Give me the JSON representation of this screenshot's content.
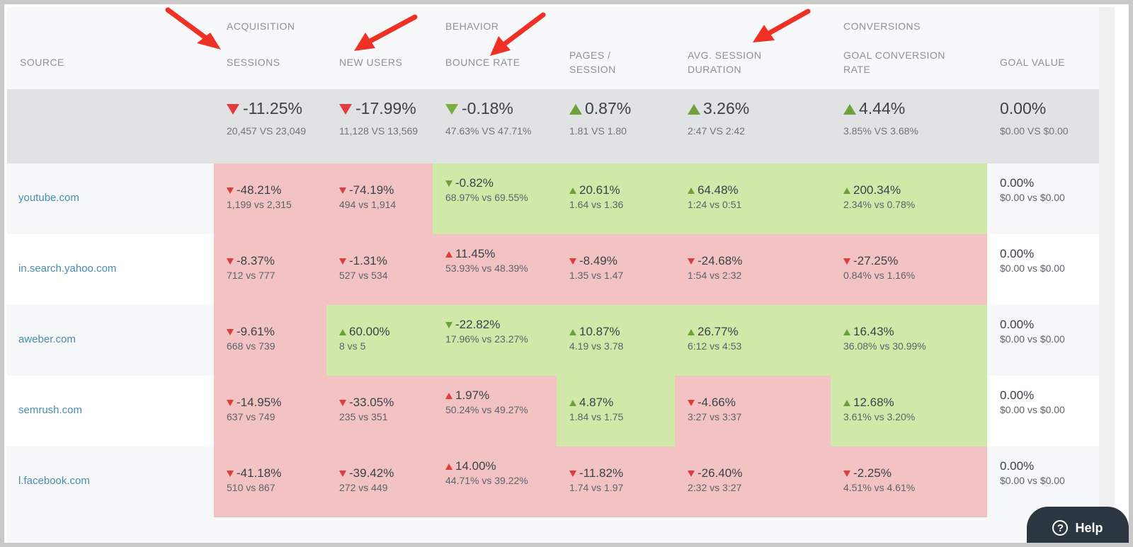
{
  "header": {
    "source": "SOURCE",
    "groups": {
      "acquisition": "ACQUISITION",
      "behavior": "BEHAVIOR",
      "conversions": "CONVERSIONS"
    },
    "columns": {
      "sessions": "SESSIONS",
      "new_users": "NEW USERS",
      "bounce_rate": "BOUNCE RATE",
      "pages_session": "PAGES /\nSESSION",
      "avg_duration": "AVG. SESSION\nDURATION",
      "goal_conv_rate": "GOAL CONVERSION\nRATE",
      "goal_value": "GOAL VALUE"
    }
  },
  "totals": {
    "sessions": {
      "pct": "-11.25%",
      "cmp": "20,457 VS 23,049",
      "trend": "down"
    },
    "new_users": {
      "pct": "-17.99%",
      "cmp": "11,128 VS 13,569",
      "trend": "down"
    },
    "bounce_rate": {
      "pct": "-0.18%",
      "cmp": "47.63% VS 47.71%",
      "trend": "down-good"
    },
    "pages_session": {
      "pct": "0.87%",
      "cmp": "1.81 VS 1.80",
      "trend": "up"
    },
    "avg_duration": {
      "pct": "3.26%",
      "cmp": "2:47 VS 2:42",
      "trend": "up"
    },
    "goal_conv_rate": {
      "pct": "4.44%",
      "cmp": "3.85% VS 3.68%",
      "trend": "up"
    },
    "goal_value": {
      "pct": "0.00%",
      "cmp": "$0.00 VS $0.00",
      "trend": "none"
    }
  },
  "rows": [
    {
      "source": "youtube.com",
      "cells": [
        {
          "pct": "-48.21%",
          "cmp": "1,199 vs 2,315",
          "trend": "down",
          "status": "bad"
        },
        {
          "pct": "-74.19%",
          "cmp": "494 vs 1,914",
          "trend": "down",
          "status": "bad"
        },
        {
          "pct": "-0.82%",
          "cmp": "68.97% vs 69.55%",
          "trend": "down-good",
          "status": "good"
        },
        {
          "pct": "20.61%",
          "cmp": "1.64 vs 1.36",
          "trend": "up",
          "status": "good"
        },
        {
          "pct": "64.48%",
          "cmp": "1:24 vs 0:51",
          "trend": "up",
          "status": "good"
        },
        {
          "pct": "200.34%",
          "cmp": "2.34% vs 0.78%",
          "trend": "up",
          "status": "good"
        },
        {
          "pct": "0.00%",
          "cmp": "$0.00 vs $0.00",
          "trend": "none",
          "status": "neutral"
        }
      ]
    },
    {
      "source": "in.search.yahoo.com",
      "cells": [
        {
          "pct": "-8.37%",
          "cmp": "712 vs 777",
          "trend": "down",
          "status": "bad"
        },
        {
          "pct": "-1.31%",
          "cmp": "527 vs 534",
          "trend": "down",
          "status": "bad"
        },
        {
          "pct": "11.45%",
          "cmp": "53.93% vs 48.39%",
          "trend": "up-bad",
          "status": "bad"
        },
        {
          "pct": "-8.49%",
          "cmp": "1.35 vs 1.47",
          "trend": "down",
          "status": "bad"
        },
        {
          "pct": "-24.68%",
          "cmp": "1:54 vs 2:32",
          "trend": "down",
          "status": "bad"
        },
        {
          "pct": "-27.25%",
          "cmp": "0.84% vs 1.16%",
          "trend": "down",
          "status": "bad"
        },
        {
          "pct": "0.00%",
          "cmp": "$0.00 vs $0.00",
          "trend": "none",
          "status": "neutral"
        }
      ]
    },
    {
      "source": "aweber.com",
      "cells": [
        {
          "pct": "-9.61%",
          "cmp": "668 vs 739",
          "trend": "down",
          "status": "bad"
        },
        {
          "pct": "60.00%",
          "cmp": "8 vs 5",
          "trend": "up",
          "status": "good"
        },
        {
          "pct": "-22.82%",
          "cmp": "17.96% vs 23.27%",
          "trend": "down-good",
          "status": "good"
        },
        {
          "pct": "10.87%",
          "cmp": "4.19 vs 3.78",
          "trend": "up",
          "status": "good"
        },
        {
          "pct": "26.77%",
          "cmp": "6:12 vs 4:53",
          "trend": "up",
          "status": "good"
        },
        {
          "pct": "16.43%",
          "cmp": "36.08% vs 30.99%",
          "trend": "up",
          "status": "good"
        },
        {
          "pct": "0.00%",
          "cmp": "$0.00 vs $0.00",
          "trend": "none",
          "status": "neutral"
        }
      ]
    },
    {
      "source": "semrush.com",
      "cells": [
        {
          "pct": "-14.95%",
          "cmp": "637 vs 749",
          "trend": "down",
          "status": "bad"
        },
        {
          "pct": "-33.05%",
          "cmp": "235 vs 351",
          "trend": "down",
          "status": "bad"
        },
        {
          "pct": "1.97%",
          "cmp": "50.24% vs 49.27%",
          "trend": "up-bad",
          "status": "bad"
        },
        {
          "pct": "4.87%",
          "cmp": "1.84 vs 1.75",
          "trend": "up",
          "status": "good"
        },
        {
          "pct": "-4.66%",
          "cmp": "3:27 vs 3:37",
          "trend": "down",
          "status": "bad"
        },
        {
          "pct": "12.68%",
          "cmp": "3.61% vs 3.20%",
          "trend": "up",
          "status": "good"
        },
        {
          "pct": "0.00%",
          "cmp": "$0.00 vs $0.00",
          "trend": "none",
          "status": "neutral"
        }
      ]
    },
    {
      "source": "l.facebook.com",
      "cells": [
        {
          "pct": "-41.18%",
          "cmp": "510 vs 867",
          "trend": "down",
          "status": "bad"
        },
        {
          "pct": "-39.42%",
          "cmp": "272 vs 449",
          "trend": "down",
          "status": "bad"
        },
        {
          "pct": "14.00%",
          "cmp": "44.71% vs 39.22%",
          "trend": "up-bad",
          "status": "bad"
        },
        {
          "pct": "-11.82%",
          "cmp": "1.74 vs 1.97",
          "trend": "down",
          "status": "bad"
        },
        {
          "pct": "-26.40%",
          "cmp": "2:32 vs 3:27",
          "trend": "down",
          "status": "bad"
        },
        {
          "pct": "-2.25%",
          "cmp": "4.51% vs 4.61%",
          "trend": "down",
          "status": "bad"
        },
        {
          "pct": "0.00%",
          "cmp": "$0.00 vs $0.00",
          "trend": "none",
          "status": "neutral"
        }
      ]
    }
  ],
  "help": {
    "label": "Help",
    "icon": "question-circle-icon"
  },
  "colors": {
    "bad_cell": "#f3c3c3",
    "good_cell": "#d0e8a8",
    "down_arrow": "#e23b3b",
    "up_arrow": "#6ea03b",
    "annotation_arrow": "#ee3124",
    "link": "#4a8bb0",
    "totals_bg": "#e1e2e3",
    "help_bg": "#2b3640"
  }
}
